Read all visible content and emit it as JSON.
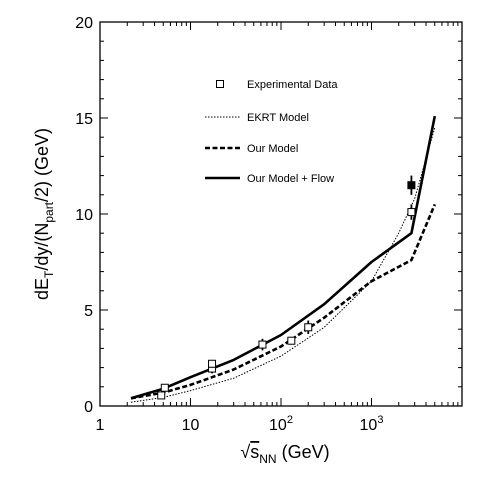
{
  "chart_data": {
    "type": "line",
    "xscale": "log",
    "xlim": [
      1,
      10000
    ],
    "ylim": [
      0,
      20
    ],
    "grid": false,
    "legend_position": "top-center",
    "xlabel": "√s_NN (GeV)",
    "ylabel": "dE_T/dy/(N_part/2) (GeV)",
    "xlabel_parts": {
      "root": "√",
      "s": "s",
      "sub": "NN",
      "unit": " (GeV)"
    },
    "ylabel_parts": {
      "d": "dE",
      "sub1": "T",
      "mid": "/dy/(N",
      "sub2": "part",
      "end": "/2) (GeV)"
    },
    "x_ticks": [
      {
        "value": 1,
        "label": "1"
      },
      {
        "value": 10,
        "label": "10"
      },
      {
        "value": 100,
        "label": "10",
        "sup": "2"
      },
      {
        "value": 1000,
        "label": "10",
        "sup": "3"
      }
    ],
    "y_ticks": [
      {
        "value": 0,
        "label": "0"
      },
      {
        "value": 5,
        "label": "5"
      },
      {
        "value": 10,
        "label": "10"
      },
      {
        "value": 15,
        "label": "15"
      },
      {
        "value": 20,
        "label": "20"
      }
    ],
    "series": [
      {
        "name": "Experimental Data",
        "style": "open-square",
        "points": [
          {
            "x": 4.75,
            "y": 0.55,
            "err": 0.05
          },
          {
            "x": 5.2,
            "y": 0.95,
            "err": 0.05
          },
          {
            "x": 17.3,
            "y": 1.95,
            "err": 0.25
          },
          {
            "x": 17.3,
            "y": 2.2,
            "err": 0.2
          },
          {
            "x": 62.4,
            "y": 3.2,
            "err": 0.3
          },
          {
            "x": 130,
            "y": 3.4,
            "err": 0.2
          },
          {
            "x": 200,
            "y": 4.1,
            "err": 0.35
          },
          {
            "x": 2760,
            "y": 10.1,
            "err": 0.4
          }
        ]
      },
      {
        "name": "Experimental Data",
        "style": "filled-square",
        "points": [
          {
            "x": 2760,
            "y": 11.5,
            "err": 0.5
          }
        ]
      },
      {
        "name": "EKRT Model",
        "style": "dotted",
        "points": [
          {
            "x": 2.2,
            "y": 0.2
          },
          {
            "x": 5,
            "y": 0.45
          },
          {
            "x": 10,
            "y": 0.8
          },
          {
            "x": 30,
            "y": 1.45
          },
          {
            "x": 100,
            "y": 2.6
          },
          {
            "x": 300,
            "y": 4.1
          },
          {
            "x": 1000,
            "y": 6.5
          },
          {
            "x": 2000,
            "y": 9.0
          },
          {
            "x": 3000,
            "y": 10.8
          },
          {
            "x": 5000,
            "y": 14.5
          }
        ]
      },
      {
        "name": "Our Model",
        "style": "dashed",
        "points": [
          {
            "x": 2.2,
            "y": 0.4
          },
          {
            "x": 5,
            "y": 0.7
          },
          {
            "x": 10,
            "y": 1.1
          },
          {
            "x": 30,
            "y": 1.9
          },
          {
            "x": 100,
            "y": 3.1
          },
          {
            "x": 300,
            "y": 4.6
          },
          {
            "x": 1000,
            "y": 6.5
          },
          {
            "x": 2760,
            "y": 7.6
          },
          {
            "x": 5000,
            "y": 10.5
          }
        ]
      },
      {
        "name": "Our Model + Flow",
        "style": "solid",
        "points": [
          {
            "x": 2.2,
            "y": 0.4
          },
          {
            "x": 5,
            "y": 0.9
          },
          {
            "x": 10,
            "y": 1.5
          },
          {
            "x": 30,
            "y": 2.4
          },
          {
            "x": 100,
            "y": 3.7
          },
          {
            "x": 300,
            "y": 5.3
          },
          {
            "x": 1000,
            "y": 7.5
          },
          {
            "x": 2760,
            "y": 9.0
          },
          {
            "x": 5000,
            "y": 15.1
          }
        ]
      }
    ],
    "legend": [
      {
        "label": "Experimental Data",
        "style": "open-square"
      },
      {
        "label": "EKRT Model",
        "style": "dotted"
      },
      {
        "label": "Our Model",
        "style": "dashed"
      },
      {
        "label": "Our Model + Flow",
        "style": "solid"
      }
    ]
  }
}
